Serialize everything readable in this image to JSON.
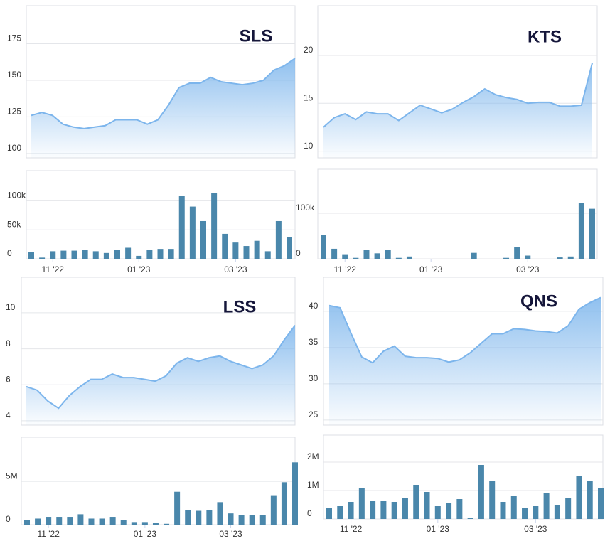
{
  "chart_data": [
    {
      "type": "area",
      "title": "SLS",
      "color": "#7cb5ec",
      "grid": true,
      "values": [
        126,
        128,
        126,
        120,
        118,
        117,
        118,
        119,
        123,
        123,
        123,
        120,
        123,
        133,
        145,
        148,
        148,
        152,
        149,
        148,
        147,
        148,
        150,
        157,
        160,
        165
      ],
      "ylim": [
        97,
        201
      ],
      "yticks": [
        100,
        125,
        150,
        175
      ]
    },
    {
      "type": "bar",
      "color": "#4a87ab",
      "grid": true,
      "categories": [
        null,
        null,
        "11 '22",
        null,
        null,
        null,
        null,
        null,
        null,
        null,
        "01 '23",
        null,
        null,
        null,
        null,
        null,
        null,
        null,
        null,
        "03 '23",
        null,
        null,
        null,
        null,
        null
      ],
      "values": [
        12000,
        2000,
        13000,
        14000,
        14000,
        15000,
        13000,
        10000,
        15000,
        19000,
        5000,
        15000,
        17000,
        17000,
        108000,
        90000,
        65000,
        113000,
        43000,
        28000,
        22000,
        31000,
        13000,
        65000,
        37000
      ],
      "ylim": [
        0,
        152000
      ],
      "yticks": [
        0,
        {
          "value": 50000,
          "label": "50k"
        },
        {
          "value": 100000,
          "label": "100k"
        }
      ]
    },
    {
      "type": "area",
      "title": "KTS",
      "color": "#7cb5ec",
      "grid": true,
      "values": [
        12.5,
        13.5,
        13.9,
        13.3,
        14.1,
        13.9,
        13.9,
        13.2,
        14,
        14.8,
        14.4,
        14,
        14.4,
        15.1,
        15.7,
        16.5,
        15.9,
        15.6,
        15.4,
        15,
        15.1,
        15.1,
        14.7,
        14.7,
        14.8,
        19.2
      ],
      "ylim": [
        9.3,
        25.2
      ],
      "yticks": [
        10,
        15,
        20
      ]
    },
    {
      "type": "bar",
      "color": "#4a87ab",
      "grid": true,
      "categories": [
        null,
        null,
        "11 '22",
        null,
        null,
        null,
        null,
        null,
        null,
        null,
        "01 '23",
        null,
        null,
        null,
        null,
        null,
        null,
        null,
        null,
        "03 '23",
        null,
        null,
        null,
        null,
        null,
        null
      ],
      "values": [
        52000,
        22000,
        10000,
        2000,
        19000,
        12000,
        19000,
        2000,
        5000,
        0,
        0,
        0,
        0,
        0,
        13000,
        0,
        0,
        2000,
        25000,
        7000,
        0,
        0,
        3000,
        5000,
        122000,
        110000
      ],
      "ylim": [
        0,
        197000
      ],
      "yticks": [
        0,
        {
          "value": 100000,
          "label": "100k"
        }
      ]
    },
    {
      "type": "area",
      "title": "LSS",
      "color": "#7cb5ec",
      "grid": true,
      "values": [
        5.9,
        5.7,
        5.1,
        4.7,
        5.4,
        5.9,
        6.3,
        6.3,
        6.6,
        6.4,
        6.4,
        6.3,
        6.2,
        6.5,
        7.2,
        7.5,
        7.3,
        7.5,
        7.6,
        7.3,
        7.1,
        6.9,
        7.1,
        7.6,
        8.5,
        9.3
      ],
      "ylim": [
        3.76,
        11.97
      ],
      "yticks": [
        4,
        6,
        8,
        10
      ]
    },
    {
      "type": "bar",
      "color": "#4a87ab",
      "grid": true,
      "categories": [
        null,
        null,
        "11 '22",
        null,
        null,
        null,
        null,
        null,
        null,
        null,
        null,
        "01 '23",
        null,
        null,
        null,
        null,
        null,
        null,
        null,
        "03 '23",
        null,
        null,
        null,
        null,
        null,
        null
      ],
      "values": [
        500000,
        700000,
        900000,
        900000,
        900000,
        1200000,
        700000,
        700000,
        900000,
        500000,
        300000,
        300000,
        200000,
        100000,
        3800000,
        1700000,
        1600000,
        1700000,
        2600000,
        1300000,
        1100000,
        1100000,
        1100000,
        3400000,
        4900000,
        7200000
      ],
      "ylim": [
        0,
        10100000
      ],
      "yticks": [
        0,
        {
          "value": 5000000,
          "label": "5M"
        }
      ]
    },
    {
      "type": "area",
      "title": "QNS",
      "color": "#7cb5ec",
      "grid": true,
      "values": [
        40.8,
        40.5,
        37,
        33.7,
        32.9,
        34.5,
        35.2,
        33.8,
        33.6,
        33.6,
        33.5,
        33,
        33.3,
        34.3,
        35.6,
        36.9,
        36.9,
        37.6,
        37.5,
        37.3,
        37.2,
        37,
        38,
        40.3,
        41.2,
        41.9
      ],
      "ylim": [
        24.3,
        44.7
      ],
      "yticks": [
        25,
        30,
        35,
        40
      ]
    },
    {
      "type": "bar",
      "color": "#4a87ab",
      "grid": true,
      "categories": [
        null,
        null,
        "11 '22",
        null,
        null,
        null,
        null,
        null,
        null,
        null,
        "01 '23",
        null,
        null,
        null,
        null,
        null,
        null,
        null,
        null,
        "03 '23",
        null,
        null,
        null,
        null,
        null,
        null
      ],
      "values": [
        400000,
        450000,
        600000,
        1100000,
        650000,
        650000,
        600000,
        750000,
        1200000,
        950000,
        450000,
        550000,
        700000,
        50000,
        1900000,
        1350000,
        600000,
        800000,
        400000,
        450000,
        900000,
        500000,
        750000,
        1500000,
        1350000,
        1100000
      ],
      "ylim": [
        0,
        2950000
      ],
      "yticks": [
        0,
        {
          "value": 1000000,
          "label": "1M"
        },
        {
          "value": 2000000,
          "label": "2M"
        }
      ]
    }
  ]
}
